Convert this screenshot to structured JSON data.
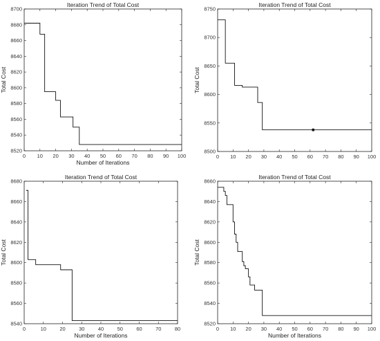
{
  "chart_data": [
    {
      "type": "line",
      "title": "Iteration Trend of Total Cost",
      "xlabel": "Number of Iterations",
      "ylabel": "Total Cost",
      "xlim": [
        0,
        100
      ],
      "ylim": [
        8520,
        8700
      ],
      "xticks": [
        "0",
        "10",
        "20",
        "30",
        "40",
        "50",
        "60",
        "70",
        "80",
        "90",
        "100"
      ],
      "yticks": [
        "8520",
        "8540",
        "8560",
        "8580",
        "8600",
        "8620",
        "8640",
        "8660",
        "8680",
        "8700"
      ],
      "grid": false,
      "series": [
        {
          "values": [
            [
              0,
              8682
            ],
            [
              10,
              8682
            ],
            [
              10,
              8668
            ],
            [
              13,
              8668
            ],
            [
              13,
              8595
            ],
            [
              20,
              8595
            ],
            [
              20,
              8584
            ],
            [
              23,
              8584
            ],
            [
              23,
              8563
            ],
            [
              31,
              8563
            ],
            [
              31,
              8550
            ],
            [
              35,
              8550
            ],
            [
              35,
              8528
            ],
            [
              100,
              8528
            ]
          ]
        }
      ]
    },
    {
      "type": "line",
      "title": "Iteration Trend of Total Cost",
      "xlabel": "",
      "ylabel": "Total Cost",
      "xlim": [
        0,
        100
      ],
      "ylim": [
        8500,
        8750
      ],
      "xticks": [
        "0",
        "10",
        "20",
        "30",
        "40",
        "50",
        "60",
        "70",
        "80",
        "90",
        "100"
      ],
      "yticks": [
        "8500",
        "8550",
        "8600",
        "8650",
        "8700",
        "8750"
      ],
      "grid": false,
      "marker": [
        62,
        8538
      ],
      "series": [
        {
          "values": [
            [
              0,
              8731
            ],
            [
              5,
              8731
            ],
            [
              5,
              8655
            ],
            [
              11,
              8655
            ],
            [
              11,
              8616
            ],
            [
              16,
              8616
            ],
            [
              16,
              8613
            ],
            [
              26,
              8613
            ],
            [
              26,
              8586
            ],
            [
              29,
              8586
            ],
            [
              29,
              8538
            ],
            [
              100,
              8538
            ]
          ]
        }
      ]
    },
    {
      "type": "line",
      "title": "Iteration Trend of Total Cost",
      "xlabel": "Number of Iterations",
      "ylabel": "Total Cost",
      "xlim": [
        0,
        80
      ],
      "ylim": [
        8540,
        8680
      ],
      "xticks": [
        "0",
        "10",
        "20",
        "30",
        "40",
        "50",
        "60",
        "70",
        "80"
      ],
      "yticks": [
        "8540",
        "8560",
        "8580",
        "8600",
        "8620",
        "8640",
        "8660",
        "8680"
      ],
      "grid": false,
      "series": [
        {
          "values": [
            [
              1,
              8671
            ],
            [
              2,
              8671
            ],
            [
              2,
              8603
            ],
            [
              6,
              8603
            ],
            [
              6,
              8598
            ],
            [
              19,
              8598
            ],
            [
              19,
              8593
            ],
            [
              25,
              8593
            ],
            [
              25,
              8543
            ],
            [
              80,
              8543
            ]
          ]
        }
      ]
    },
    {
      "type": "line",
      "title": "Iteration Trend of Total Cost",
      "xlabel": "Number of Iterations",
      "ylabel": "Total Cost",
      "xlim": [
        0,
        100
      ],
      "ylim": [
        8520,
        8660
      ],
      "xticks": [
        "0",
        "10",
        "20",
        "30",
        "40",
        "50",
        "60",
        "70",
        "80",
        "90",
        "100"
      ],
      "yticks": [
        "8520",
        "8540",
        "8560",
        "8580",
        "8600",
        "8620",
        "8640",
        "8660"
      ],
      "grid": false,
      "series": [
        {
          "values": [
            [
              0,
              8654
            ],
            [
              4,
              8654
            ],
            [
              4,
              8650
            ],
            [
              5,
              8650
            ],
            [
              5,
              8646
            ],
            [
              6,
              8646
            ],
            [
              6,
              8637
            ],
            [
              10,
              8637
            ],
            [
              10,
              8620
            ],
            [
              11,
              8620
            ],
            [
              11,
              8608
            ],
            [
              12,
              8608
            ],
            [
              12,
              8600
            ],
            [
              13,
              8600
            ],
            [
              13,
              8591
            ],
            [
              16,
              8591
            ],
            [
              16,
              8581
            ],
            [
              17,
              8581
            ],
            [
              17,
              8577
            ],
            [
              18,
              8577
            ],
            [
              18,
              8574
            ],
            [
              20,
              8574
            ],
            [
              20,
              8566
            ],
            [
              21,
              8566
            ],
            [
              21,
              8558
            ],
            [
              24,
              8558
            ],
            [
              24,
              8553
            ],
            [
              29,
              8553
            ],
            [
              29,
              8528
            ],
            [
              100,
              8528
            ]
          ]
        }
      ]
    }
  ]
}
